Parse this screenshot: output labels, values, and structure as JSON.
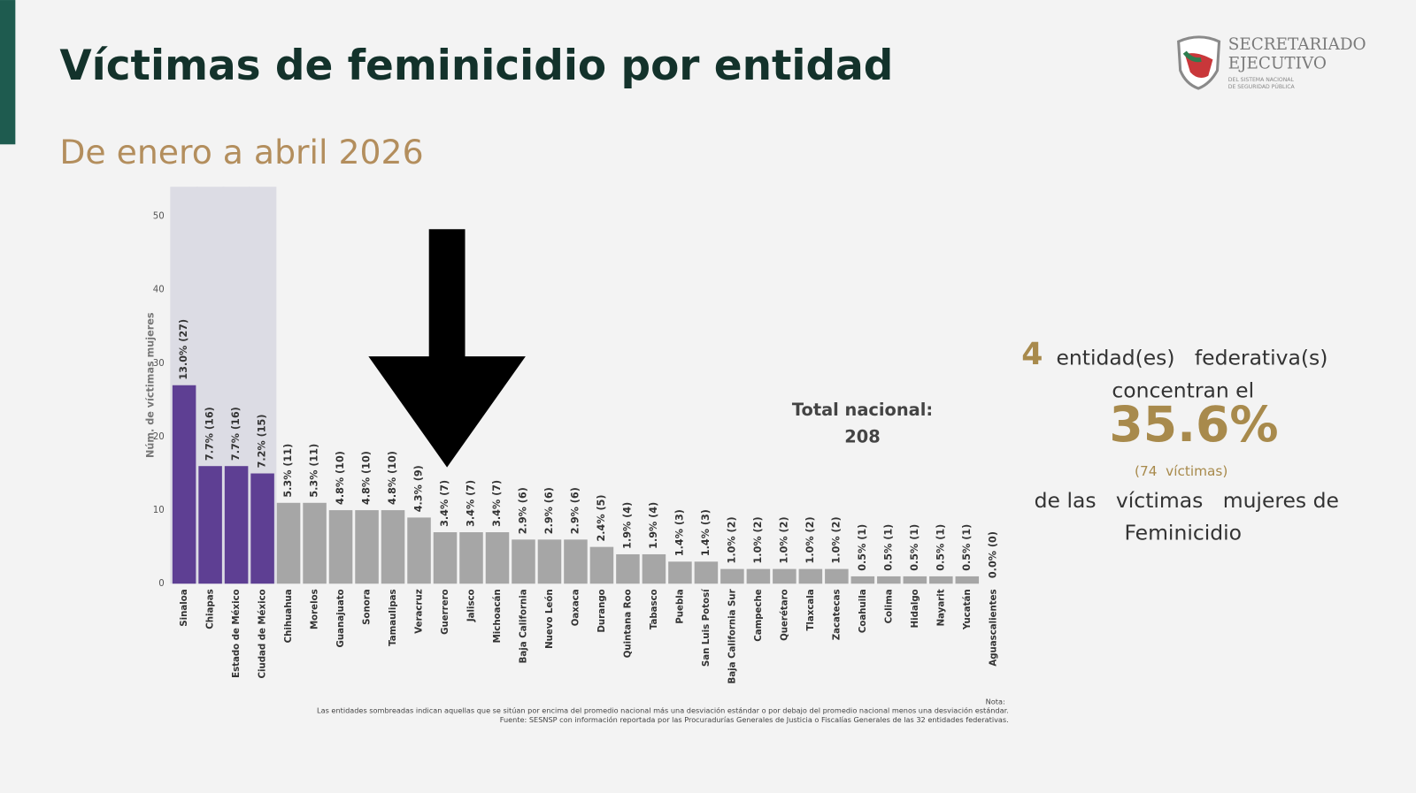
{
  "header": {
    "title": "Víctimas de feminicidio por entidad",
    "subtitle": "De enero a abril 2026"
  },
  "logo": {
    "line1": "SECRETARIADO",
    "line2": "EJECUTIVO",
    "line3": "DEL SISTEMA NACIONAL",
    "line4": "DE SEGURIDAD PÚBLICA"
  },
  "chart_data": {
    "type": "bar",
    "y_label": "Núm. de víctimas mujeres",
    "categories": [
      "Sinaloa",
      "Chiapas",
      "Estado de México",
      "Ciudad de México",
      "Chihuahua",
      "Morelos",
      "Guanajuato",
      "Sonora",
      "Tamaulipas",
      "Veracruz",
      "Guerrero",
      "Jalisco",
      "Michoacán",
      "Baja California",
      "Nuevo León",
      "Oaxaca",
      "Durango",
      "Quintana Roo",
      "Tabasco",
      "Puebla",
      "San Luis Potosí",
      "Baja California Sur",
      "Campeche",
      "Querétaro",
      "Tlaxcala",
      "Zacatecas",
      "Coahuila",
      "Colima",
      "Hidalgo",
      "Nayarit",
      "Yucatán",
      "Aguascalientes"
    ],
    "values": [
      27,
      16,
      16,
      15,
      11,
      11,
      10,
      10,
      10,
      9,
      7,
      7,
      7,
      6,
      6,
      6,
      5,
      4,
      4,
      3,
      3,
      2,
      2,
      2,
      2,
      2,
      1,
      1,
      1,
      1,
      1,
      0
    ],
    "value_labels": [
      "13.0% (27)",
      "7.7% (16)",
      "7.7% (16)",
      "7.2% (15)",
      "5.3% (11)",
      "5.3% (11)",
      "4.8% (10)",
      "4.8% (10)",
      "4.8% (10)",
      "4.3% (9)",
      "3.4% (7)",
      "3.4% (7)",
      "3.4% (7)",
      "2.9% (6)",
      "2.9% (6)",
      "2.9% (6)",
      "2.4% (5)",
      "1.9% (4)",
      "1.9% (4)",
      "1.4% (3)",
      "1.4% (3)",
      "1.0% (2)",
      "1.0% (2)",
      "1.0% (2)",
      "1.0% (2)",
      "1.0% (2)",
      "0.5% (1)",
      "0.5% (1)",
      "0.5% (1)",
      "0.5% (1)",
      "0.5% (1)",
      "0.0% (0)"
    ],
    "color": "#a6a6a6",
    "colors": [
      "#5e3f93",
      "#5e3f93",
      "#5e3f93",
      "#5e3f93",
      "#a6a6a6",
      "#a6a6a6",
      "#a6a6a6",
      "#a6a6a6",
      "#a6a6a6",
      "#a6a6a6",
      "#a6a6a6",
      "#a6a6a6",
      "#a6a6a6",
      "#a6a6a6",
      "#a6a6a6",
      "#a6a6a6",
      "#a6a6a6",
      "#a6a6a6",
      "#a6a6a6",
      "#a6a6a6",
      "#a6a6a6",
      "#a6a6a6",
      "#a6a6a6",
      "#a6a6a6",
      "#a6a6a6",
      "#a6a6a6",
      "#a6a6a6",
      "#a6a6a6",
      "#a6a6a6",
      "#a6a6a6",
      "#a6a6a6",
      "#a6a6a6"
    ],
    "ylim": [
      0,
      54
    ],
    "yticks": [
      0,
      10,
      20,
      30,
      40,
      50
    ],
    "grid": false
  },
  "total": {
    "label": "Total nacional:",
    "value": "208"
  },
  "summary": {
    "count": "4",
    "line1": "entidad(es)   federativa(s)",
    "line2": "concentran el",
    "percent": "35.6%",
    "victims": "(74  víctimas)",
    "line3": "de las   víctimas   mujeres de",
    "line4": "Feminicidio"
  },
  "note": {
    "heading": "Nota:",
    "text": "Las entidades sombreadas indican aquellas que se sitúan por encima del promedio nacional más una desviación estándar o por debajo del promedio nacional menos una desviación estándar.",
    "source": "Fuente: SESNSP con información reportada por las Procuradurías Generales de Justicia o Fiscalías Generales de las 32 entidades federativas."
  }
}
